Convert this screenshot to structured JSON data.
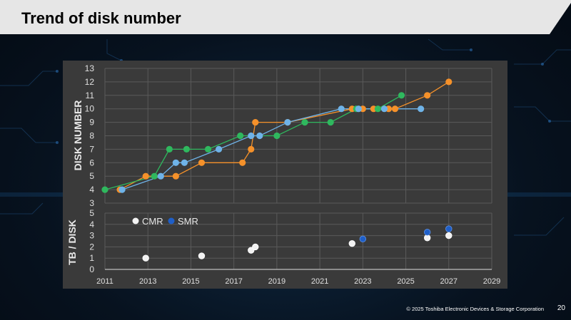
{
  "slide": {
    "title": "Trend of disk number",
    "copyright": "© 2025 Toshiba Electronic Devices & Storage Corporation",
    "page_number": "20"
  },
  "colors": {
    "orange": "#f5912a",
    "green": "#2fb85e",
    "blue": "#6fb3e8",
    "cmr": "#f2f2f2",
    "smr": "#1f5fc8"
  },
  "chart_data": [
    {
      "type": "line",
      "title": "",
      "ylabel": "DISK NUMBER",
      "xlim": [
        2011,
        2029
      ],
      "ylim": [
        3,
        13
      ],
      "yticks": [
        3,
        4,
        5,
        6,
        7,
        8,
        9,
        10,
        11,
        12,
        13
      ],
      "grid": true,
      "series": [
        {
          "name": "orange",
          "color": "#f5912a",
          "points": [
            [
              2011.7,
              4
            ],
            [
              2012.9,
              5
            ],
            [
              2014.3,
              5
            ],
            [
              2015.5,
              6
            ],
            [
              2017.4,
              6
            ],
            [
              2017.8,
              7
            ],
            [
              2018.0,
              9
            ],
            [
              2019.5,
              9
            ],
            [
              2022.5,
              10
            ],
            [
              2023.0,
              10
            ],
            [
              2023.5,
              10
            ],
            [
              2024.2,
              10
            ],
            [
              2024.5,
              10
            ],
            [
              2026.0,
              11
            ],
            [
              2027.0,
              12
            ]
          ]
        },
        {
          "name": "green",
          "color": "#2fb85e",
          "points": [
            [
              2011.0,
              4
            ],
            [
              2013.3,
              5
            ],
            [
              2014.0,
              7
            ],
            [
              2014.8,
              7
            ],
            [
              2015.8,
              7
            ],
            [
              2017.3,
              8
            ],
            [
              2019.0,
              8
            ],
            [
              2020.3,
              9
            ],
            [
              2021.5,
              9
            ],
            [
              2022.7,
              10
            ],
            [
              2023.7,
              10
            ],
            [
              2024.8,
              11
            ]
          ]
        },
        {
          "name": "blue",
          "color": "#6fb3e8",
          "points": [
            [
              2011.8,
              4
            ],
            [
              2013.6,
              5
            ],
            [
              2014.3,
              6
            ],
            [
              2014.7,
              6
            ],
            [
              2016.3,
              7
            ],
            [
              2017.8,
              8
            ],
            [
              2018.2,
              8
            ],
            [
              2019.5,
              9
            ],
            [
              2022.0,
              10
            ],
            [
              2022.8,
              10
            ],
            [
              2024.0,
              10
            ],
            [
              2025.7,
              10
            ]
          ]
        }
      ]
    },
    {
      "type": "scatter",
      "title": "",
      "ylabel": "TB / DISK",
      "xlabel": "",
      "xlim": [
        2011,
        2029
      ],
      "ylim": [
        0,
        5
      ],
      "xticks": [
        2011,
        2013,
        2015,
        2017,
        2019,
        2021,
        2023,
        2025,
        2027,
        2029
      ],
      "yticks": [
        0,
        1,
        2,
        3,
        4,
        5
      ],
      "legend": [
        "CMR",
        "SMR"
      ],
      "legend_position": "top-left",
      "series": [
        {
          "name": "CMR",
          "color": "#f2f2f2",
          "points": [
            [
              2012.9,
              1.0
            ],
            [
              2015.5,
              1.2
            ],
            [
              2017.8,
              1.7
            ],
            [
              2018.0,
              2.0
            ],
            [
              2022.5,
              2.3
            ],
            [
              2026.0,
              2.8
            ],
            [
              2027.0,
              3.0
            ]
          ]
        },
        {
          "name": "SMR",
          "color": "#1f5fc8",
          "points": [
            [
              2023.0,
              2.7
            ],
            [
              2026.0,
              3.3
            ],
            [
              2027.0,
              3.6
            ]
          ]
        }
      ]
    }
  ]
}
